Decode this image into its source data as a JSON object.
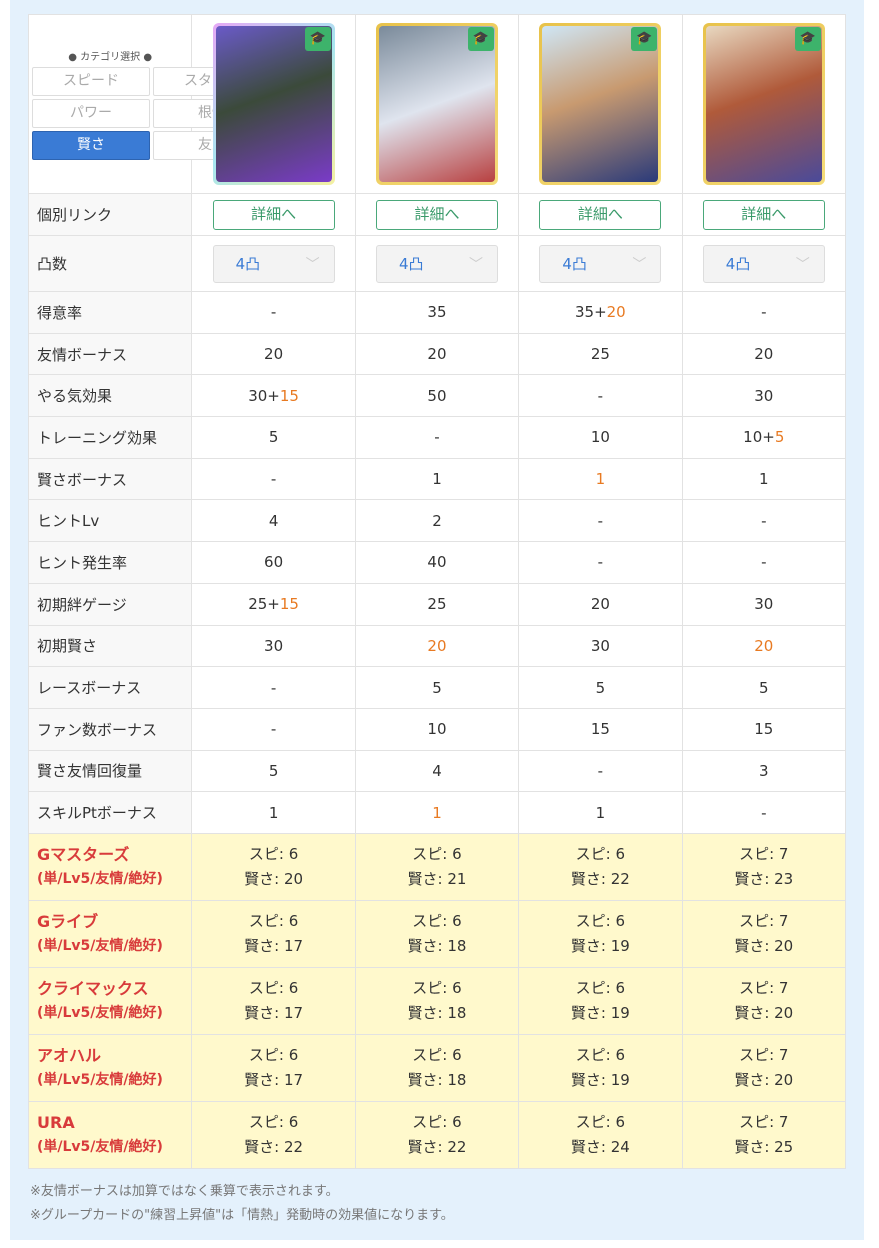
{
  "category": {
    "title": "● カテゴリ選択 ●",
    "options": [
      "スピード",
      "スタミナ",
      "パワー",
      "根性",
      "賢さ",
      "友人"
    ],
    "selected": "賢さ"
  },
  "cards": [
    {
      "frame": "linear-gradient(135deg,#e6a8f5,#a8e6f0,#f5f0a0)",
      "art": "linear-gradient(160deg,#6a5ac8,#3b4a3a 45%,#7a3bc8)",
      "type_icon": "graduation-cap-icon"
    },
    {
      "frame": "linear-gradient(135deg,#e8c24a,#f5dc7a)",
      "art": "linear-gradient(160deg,#7a8a9a,#dfe4ee 50%,#b84040)",
      "type_icon": "graduation-cap-icon"
    },
    {
      "frame": "linear-gradient(135deg,#e8c24a,#f5dc7a)",
      "art": "linear-gradient(160deg,#cfe6f5,#c89a70 45%,#2a3a7a)",
      "type_icon": "graduation-cap-icon"
    },
    {
      "frame": "linear-gradient(135deg,#e8c24a,#f5dc7a)",
      "art": "linear-gradient(160deg,#e8d8c0,#b05a3a 45%,#4a4a9a)",
      "type_icon": "graduation-cap-icon"
    }
  ],
  "link_row": {
    "label": "個別リンク",
    "button": "詳細へ"
  },
  "rank_row": {
    "label": "凸数",
    "values": [
      "4凸",
      "4凸",
      "4凸",
      "4凸"
    ]
  },
  "rows": [
    {
      "label": "得意率",
      "cells": [
        {
          "v": "-"
        },
        {
          "v": "35"
        },
        {
          "v": "35+",
          "x": "20"
        },
        {
          "v": "-"
        }
      ]
    },
    {
      "label": "友情ボーナス",
      "cells": [
        {
          "v": "20"
        },
        {
          "v": "20"
        },
        {
          "v": "25"
        },
        {
          "v": "20"
        }
      ]
    },
    {
      "label": "やる気効果",
      "cells": [
        {
          "v": "30+",
          "x": "15"
        },
        {
          "v": "50"
        },
        {
          "v": "-"
        },
        {
          "v": "30"
        }
      ]
    },
    {
      "label": "トレーニング効果",
      "cells": [
        {
          "v": "5"
        },
        {
          "v": "-"
        },
        {
          "v": "10"
        },
        {
          "v": "10+",
          "x": "5"
        }
      ]
    },
    {
      "label": "賢さボーナス",
      "cells": [
        {
          "v": "-"
        },
        {
          "v": "1"
        },
        {
          "v": "",
          "x": "1"
        },
        {
          "v": "1"
        }
      ]
    },
    {
      "label": "ヒントLv",
      "cells": [
        {
          "v": "4"
        },
        {
          "v": "2"
        },
        {
          "v": "-"
        },
        {
          "v": "-"
        }
      ]
    },
    {
      "label": "ヒント発生率",
      "cells": [
        {
          "v": "60"
        },
        {
          "v": "40"
        },
        {
          "v": "-"
        },
        {
          "v": "-"
        }
      ]
    },
    {
      "label": "初期絆ゲージ",
      "cells": [
        {
          "v": "25+",
          "x": "15"
        },
        {
          "v": "25"
        },
        {
          "v": "20"
        },
        {
          "v": "30"
        }
      ]
    },
    {
      "label": "初期賢さ",
      "cells": [
        {
          "v": "30"
        },
        {
          "v": "",
          "x": "20"
        },
        {
          "v": "30"
        },
        {
          "v": "",
          "x": "20"
        }
      ]
    },
    {
      "label": "レースボーナス",
      "cells": [
        {
          "v": "-"
        },
        {
          "v": "5"
        },
        {
          "v": "5"
        },
        {
          "v": "5"
        }
      ]
    },
    {
      "label": "ファン数ボーナス",
      "cells": [
        {
          "v": "-"
        },
        {
          "v": "10"
        },
        {
          "v": "15"
        },
        {
          "v": "15"
        }
      ]
    },
    {
      "label": "賢さ友情回復量",
      "cells": [
        {
          "v": "5"
        },
        {
          "v": "4"
        },
        {
          "v": "-"
        },
        {
          "v": "3"
        }
      ]
    },
    {
      "label": "スキルPtボーナス",
      "cells": [
        {
          "v": "1"
        },
        {
          "v": "",
          "x": "1"
        },
        {
          "v": "1"
        },
        {
          "v": "-"
        }
      ]
    }
  ],
  "scenarios": [
    {
      "name": "Gマスターズ",
      "sub": "(単/Lv5/友情/絶好)",
      "cells": [
        [
          "スピ: 6",
          "賢さ: 20"
        ],
        [
          "スピ: 6",
          "賢さ: 21"
        ],
        [
          "スピ: 6",
          "賢さ: 22"
        ],
        [
          "スピ: 7",
          "賢さ: 23"
        ]
      ]
    },
    {
      "name": "Gライブ",
      "sub": "(単/Lv5/友情/絶好)",
      "cells": [
        [
          "スピ: 6",
          "賢さ: 17"
        ],
        [
          "スピ: 6",
          "賢さ: 18"
        ],
        [
          "スピ: 6",
          "賢さ: 19"
        ],
        [
          "スピ: 7",
          "賢さ: 20"
        ]
      ]
    },
    {
      "name": "クライマックス",
      "sub": "(単/Lv5/友情/絶好)",
      "cells": [
        [
          "スピ: 6",
          "賢さ: 17"
        ],
        [
          "スピ: 6",
          "賢さ: 18"
        ],
        [
          "スピ: 6",
          "賢さ: 19"
        ],
        [
          "スピ: 7",
          "賢さ: 20"
        ]
      ]
    },
    {
      "name": "アオハル",
      "sub": "(単/Lv5/友情/絶好)",
      "cells": [
        [
          "スピ: 6",
          "賢さ: 17"
        ],
        [
          "スピ: 6",
          "賢さ: 18"
        ],
        [
          "スピ: 6",
          "賢さ: 19"
        ],
        [
          "スピ: 7",
          "賢さ: 20"
        ]
      ]
    },
    {
      "name": "URA",
      "sub": "(単/Lv5/友情/絶好)",
      "cells": [
        [
          "スピ: 6",
          "賢さ: 22"
        ],
        [
          "スピ: 6",
          "賢さ: 22"
        ],
        [
          "スピ: 6",
          "賢さ: 24"
        ],
        [
          "スピ: 7",
          "賢さ: 25"
        ]
      ]
    }
  ],
  "notes": [
    "※友情ボーナスは加算ではなく乗算で表示されます。",
    "※グループカードの\"練習上昇値\"は「情熱」発動時の効果値になります。"
  ],
  "colors": {
    "accent": "#3a7bd5",
    "highlight": "#e87a22",
    "scenario_label": "#d83b3b",
    "scenario_bg": "#fff9cc",
    "link_green": "#3a9a6a"
  }
}
